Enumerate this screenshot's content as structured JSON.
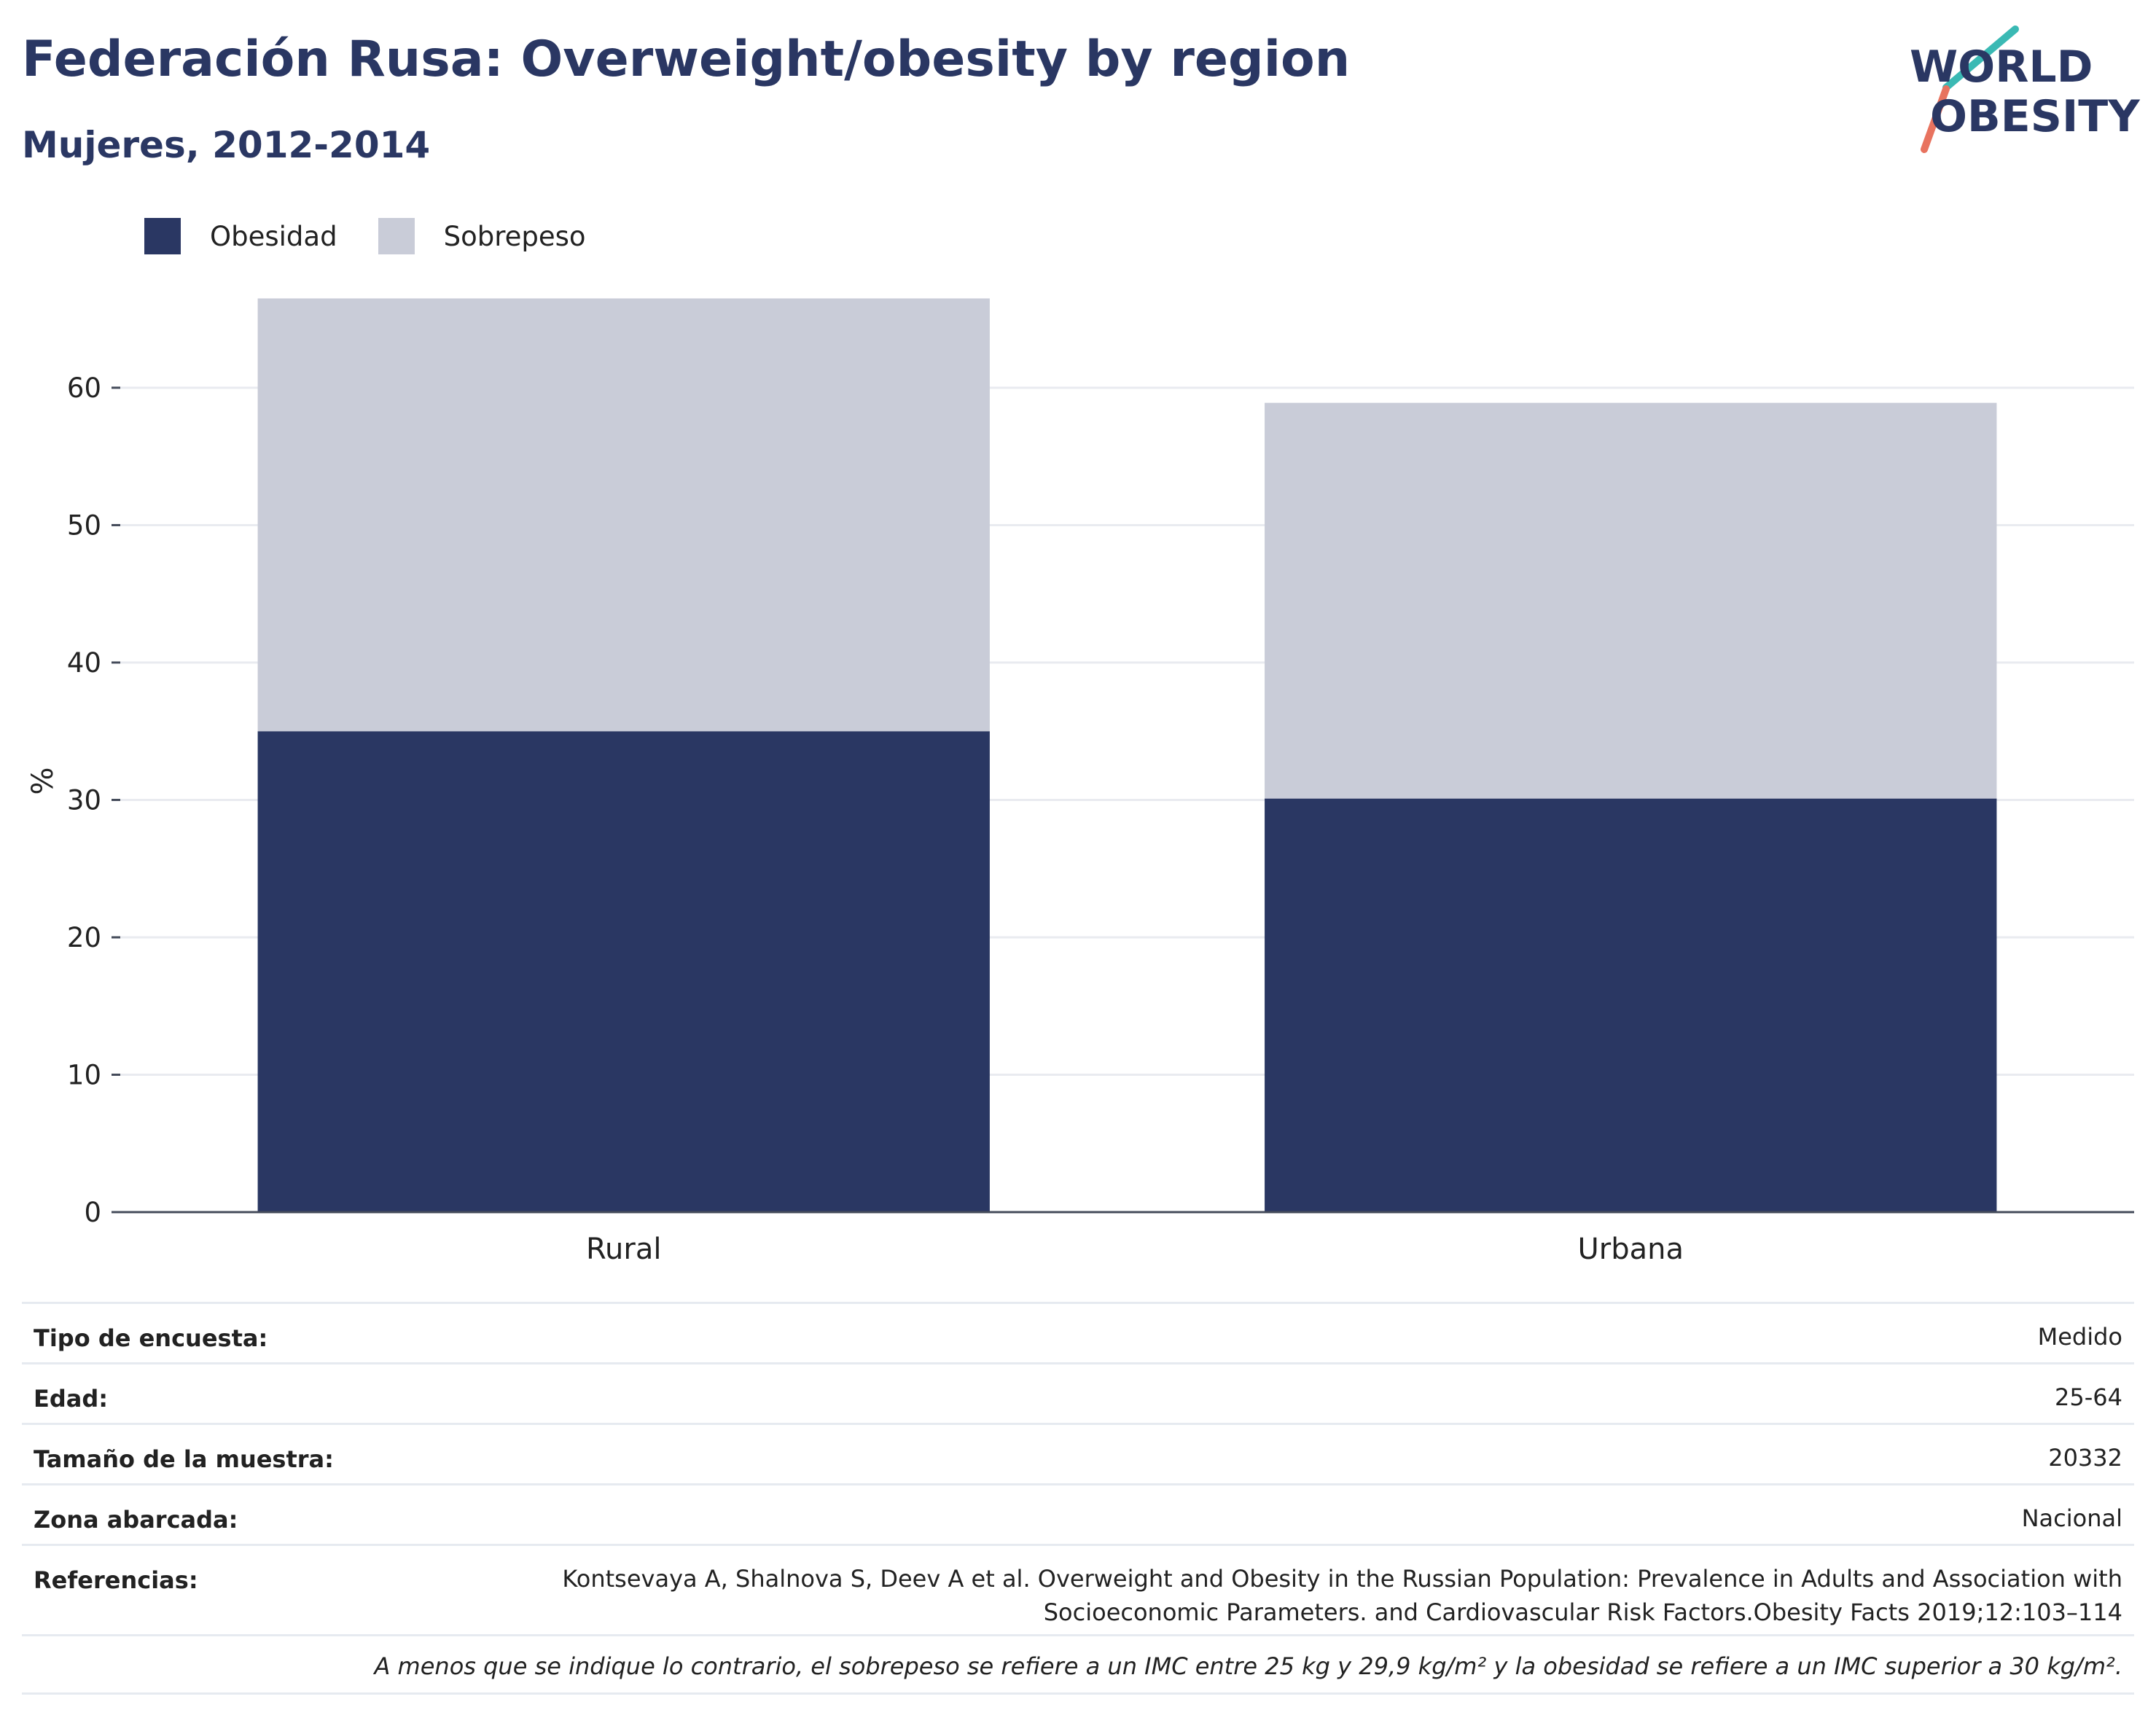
{
  "header": {
    "title": "Federación Rusa: Overweight/obesity by region",
    "subtitle": "Mujeres, 2012-2014"
  },
  "logo": {
    "line1": "WORLD",
    "line2": "OBESITY",
    "colors": {
      "text": "#2a3763",
      "accent_teal": "#3ab9b4",
      "accent_coral": "#e8735f"
    }
  },
  "legend": {
    "items": [
      {
        "label": "Obesidad",
        "color": "#2a3763"
      },
      {
        "label": "Sobrepeso",
        "color": "#c9ccd8"
      }
    ]
  },
  "chart_data": {
    "type": "bar",
    "stacked": true,
    "categories": [
      "Rural",
      "Urbana"
    ],
    "series": [
      {
        "name": "Obesidad",
        "values": [
          35.0,
          30.1
        ],
        "color": "#2a3763"
      },
      {
        "name": "Sobrepeso",
        "values": [
          31.5,
          28.8
        ],
        "color": "#c9ccd8"
      }
    ],
    "ylabel": "%",
    "xlabel": "",
    "ylim": [
      0,
      67
    ],
    "yticks": [
      0,
      10,
      20,
      30,
      40,
      50,
      60
    ],
    "grid": true,
    "legend_position": "top-left"
  },
  "info": {
    "rows": [
      {
        "key": "Tipo de encuesta:",
        "value": "Medido"
      },
      {
        "key": "Edad:",
        "value": "25-64"
      },
      {
        "key": "Tamaño de la muestra:",
        "value": "20332"
      },
      {
        "key": "Zona abarcada:",
        "value": "Nacional"
      }
    ],
    "references": {
      "key": "Referencias:",
      "line1": "Kontsevaya A, Shalnova S, Deev A et al. Overweight and Obesity in the Russian Population: Prevalence in Adults and Association with",
      "line2": "Socioeconomic Parameters. and Cardiovascular Risk Factors.Obesity Facts 2019;12:103–114"
    },
    "footnote": "A menos que se indique lo contrario, el sobrepeso se refiere a un IMC entre 25 kg y 29,9 kg/m² y la obesidad se refiere a un IMC superior a 30 kg/m²."
  }
}
